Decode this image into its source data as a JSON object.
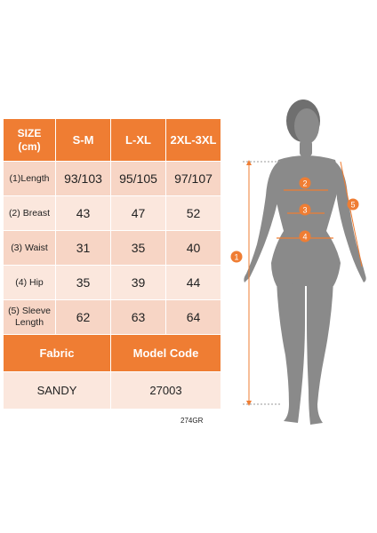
{
  "table": {
    "header": [
      "SIZE\n(cm)",
      "S-M",
      "L-XL",
      "2XL-3XL"
    ],
    "rows": [
      {
        "label": "(1)Length",
        "values": [
          "93/103",
          "95/105",
          "97/107"
        ]
      },
      {
        "label": "(2) Breast",
        "values": [
          "43",
          "47",
          "52"
        ]
      },
      {
        "label": "(3) Waist",
        "values": [
          "31",
          "35",
          "40"
        ]
      },
      {
        "label": "(4) Hip",
        "values": [
          "35",
          "39",
          "44"
        ]
      },
      {
        "label": "(5) Sleeve\nLength",
        "values": [
          "62",
          "63",
          "64"
        ]
      }
    ],
    "footer_header": [
      "Fabric",
      "Model Code"
    ],
    "footer_values": [
      "SANDY",
      "27003"
    ]
  },
  "product_code": "274GR",
  "figure": {
    "markers": [
      "1",
      "2",
      "3",
      "4",
      "5"
    ],
    "marker_color": "#ef7d33",
    "silhouette_color": "#8a8a8a"
  }
}
